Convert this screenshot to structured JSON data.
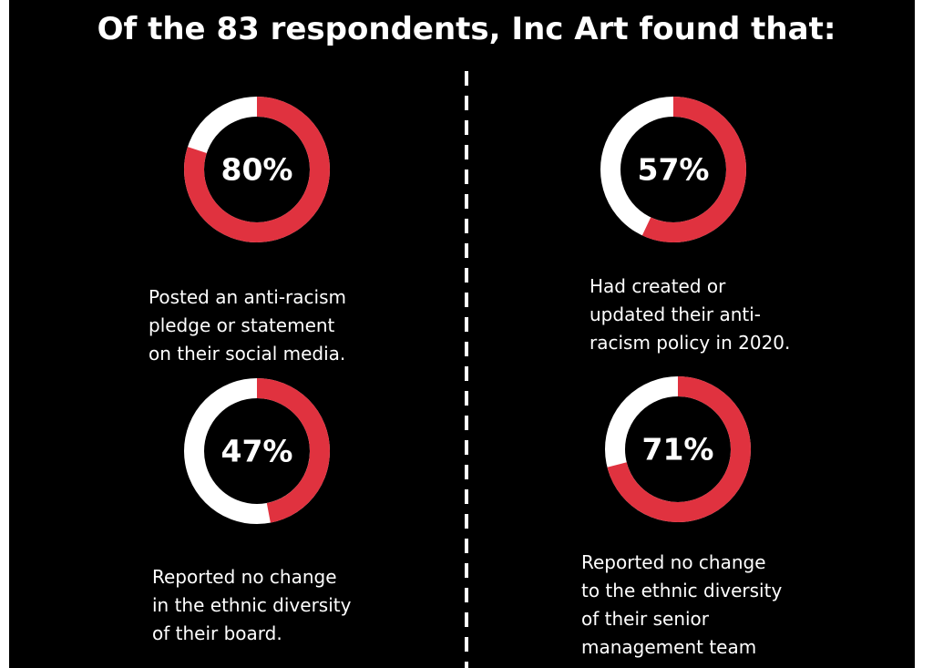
{
  "title": "Of the 83 respondents, Inc Art found that:",
  "colors": {
    "background": "#000000",
    "accent": "#e0323f",
    "track": "#ffffff",
    "text": "#ffffff"
  },
  "chart_data": [
    {
      "type": "pie",
      "variant": "donut",
      "value": 80,
      "label": "80%",
      "caption": "Posted an anti-racism\npledge or statement\non their social media."
    },
    {
      "type": "pie",
      "variant": "donut",
      "value": 57,
      "label": "57%",
      "caption": "Had created or\nupdated their anti-\nracism policy in 2020."
    },
    {
      "type": "pie",
      "variant": "donut",
      "value": 47,
      "label": "47%",
      "caption": "Reported no change\nin the ethnic diversity\nof their board."
    },
    {
      "type": "pie",
      "variant": "donut",
      "value": 71,
      "label": "71%",
      "caption": "Reported no change\nto the ethnic diversity\nof their senior\nmanagement team"
    }
  ]
}
